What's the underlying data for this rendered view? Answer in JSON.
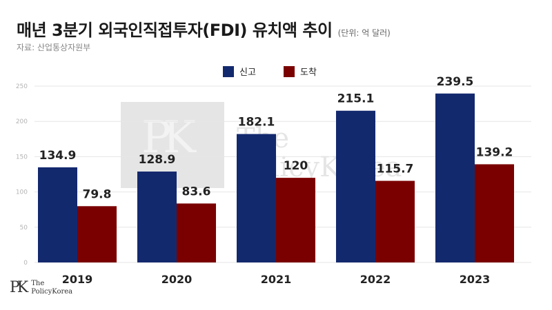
{
  "header": {
    "title": "매년 3분기 외국인직접투자(FDI) 유치액 추이",
    "unit_note": "(단위: 억 달러)",
    "source": "자료: 산업통상자원부"
  },
  "brand": {
    "mark": "PK",
    "name_line1": "The",
    "name_line2": "PolicyKorea"
  },
  "chart_data": {
    "type": "bar",
    "categories": [
      "2019",
      "2020",
      "2021",
      "2022",
      "2023"
    ],
    "series": [
      {
        "name": "신고",
        "values": [
          134.9,
          128.9,
          182.1,
          215.1,
          239.5
        ],
        "color": "#13296e"
      },
      {
        "name": "도착",
        "values": [
          79.8,
          83.6,
          120,
          115.7,
          139.2
        ],
        "color": "#7a0000"
      }
    ],
    "value_labels": {
      "신고": [
        "134.9",
        "128.9",
        "182.1",
        "215.1",
        "239.5"
      ],
      "도착": [
        "79.8",
        "83.6",
        "120",
        "115.7",
        "139.2"
      ]
    },
    "ylim": [
      0,
      250
    ],
    "yticks": [
      0,
      50,
      100,
      150,
      200,
      250
    ],
    "grid": true,
    "legend_position": "top-center"
  }
}
